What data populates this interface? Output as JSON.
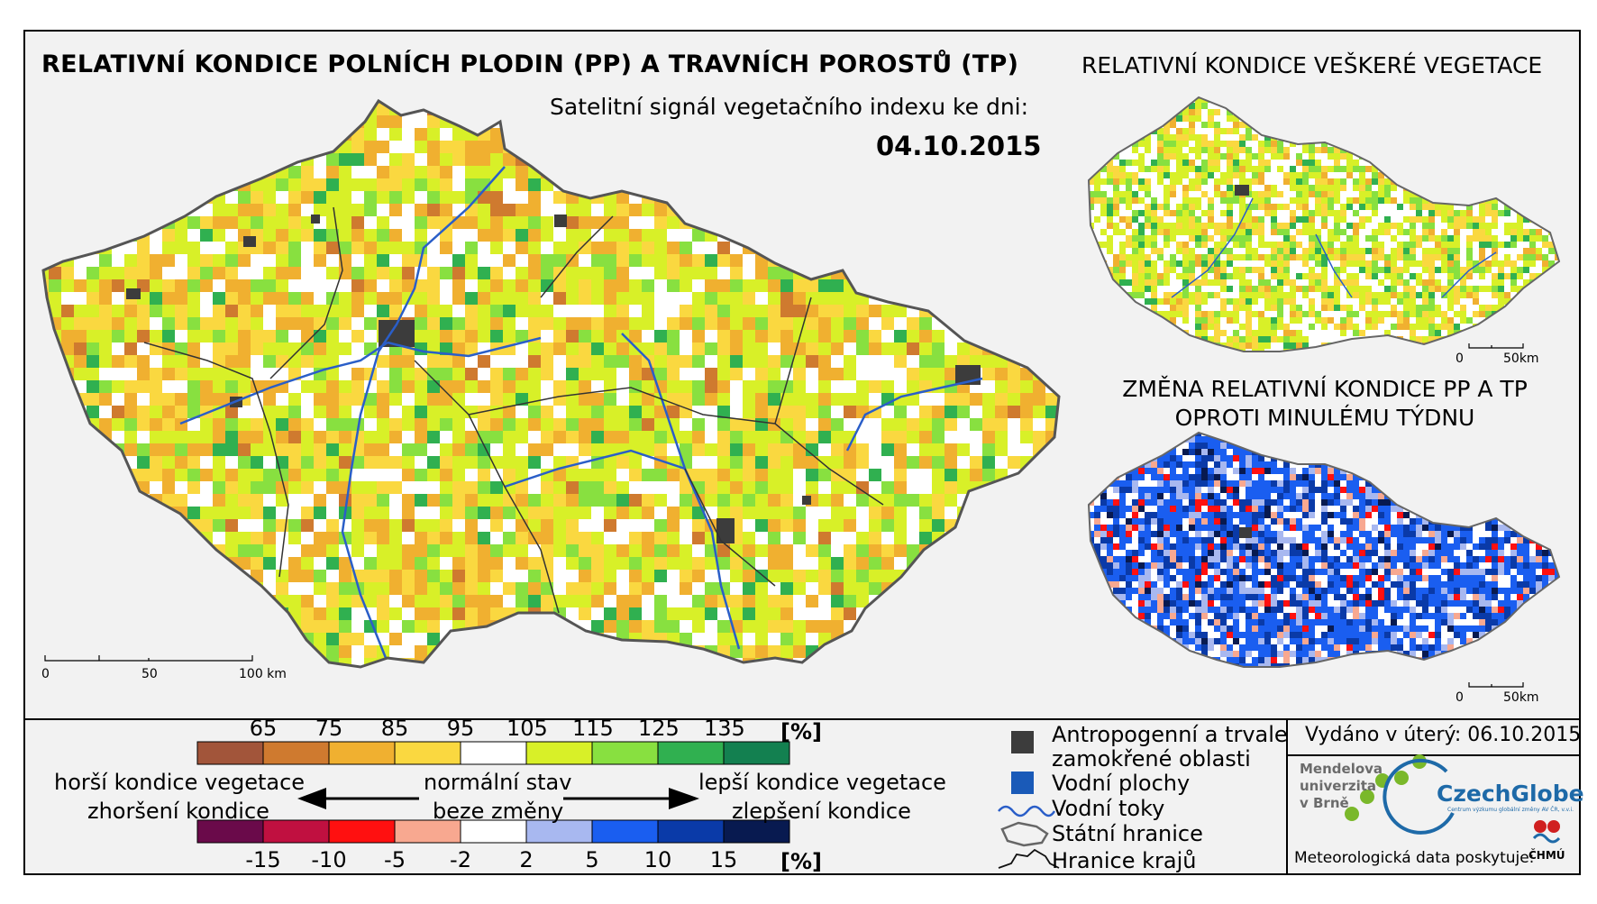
{
  "header": {
    "main_title": "RELATIVNÍ KONDICE POLNÍCH PLODIN (PP) A TRAVNÍCH POROSTŮ (TP)",
    "subtitle": "Satelitní signál vegetačního indexu ke dni:",
    "date": "04.10.2015",
    "vegetation_title": "RELATIVNÍ KONDICE VEŠKERÉ VEGETACE",
    "change_title_line1": "ZMĚNA RELATIVNÍ KONDICE PP A TP",
    "change_title_line2": "OPROTI MINULÉMU TÝDNU"
  },
  "scalebar_main": {
    "labels": [
      "0",
      "50",
      "100 km"
    ]
  },
  "scalebar_small": {
    "labels": [
      "0",
      "50km"
    ]
  },
  "condition_legend": {
    "unit": "[%]",
    "thresholds": [
      "65",
      "75",
      "85",
      "95",
      "105",
      "115",
      "125",
      "135"
    ],
    "colors": [
      "#a2553a",
      "#cf7a2f",
      "#f0b030",
      "#fad840",
      "#ffffff",
      "#d8f028",
      "#88e040",
      "#30b050",
      "#138050"
    ]
  },
  "change_legend": {
    "unit": "[%]",
    "thresholds": [
      "-15",
      "-10",
      "-5",
      "-2",
      "2",
      "5",
      "10",
      "15"
    ],
    "colors": [
      "#6a0a4a",
      "#c01040",
      "#ff1010",
      "#f8a890",
      "#ffffff",
      "#a8b8f0",
      "#1a5ef0",
      "#0a3aa8",
      "#081a50"
    ]
  },
  "arrows": {
    "worse_condition": "horší kondice vegetace",
    "worse_change": "zhoršení kondice",
    "normal_state": "normální stav",
    "no_change": "beze změny",
    "better_condition": "lepší kondice vegetace",
    "better_change": "zlepšení kondice"
  },
  "symbol_legend": {
    "urban": "Antropogenní a trvale",
    "urban_line2": "zamokřené oblasti",
    "water_bodies": "Vodní plochy",
    "rivers": "Vodní toky",
    "state_border": "Státní hranice",
    "region_border": "Hranice krajů",
    "colors": {
      "urban": "#3c3c3c",
      "water": "#1a5ab8",
      "river": "#2a5ec8"
    }
  },
  "footer": {
    "issued": "Vydáno v úterý: 06.10.2015",
    "mendel_line1": "Mendelova",
    "mendel_line2": "univerzita",
    "mendel_line3": "v Brně",
    "czechglobe": "CzechGlobe",
    "czechglobe_sub": "Centrum výzkumu globální změny AV ČR, v.v.i.",
    "meteo": "Meteorologická data poskytuje:",
    "chmu": "ČHMÚ"
  }
}
